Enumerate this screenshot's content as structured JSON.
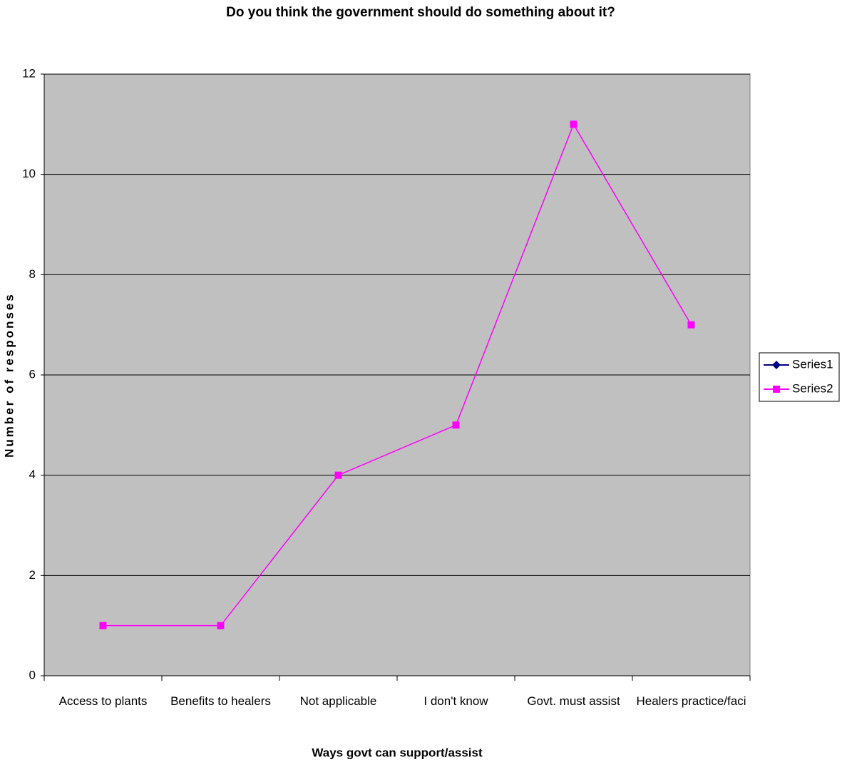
{
  "chart_data": {
    "type": "line",
    "title": "Do you think the government should do something about it?",
    "x_label": "Ways govt can support/assist",
    "y_label": "Number of responses",
    "categories": [
      "Access to plants",
      "Benefits to healers",
      "Not applicable",
      "I don't know",
      "Govt. must assist",
      "Healers practice/faci"
    ],
    "series": [
      {
        "name": "Series1",
        "color": "#000080",
        "marker": "diamond",
        "values": [
          null,
          null,
          null,
          null,
          null,
          null
        ]
      },
      {
        "name": "Series2",
        "color": "#ff00ff",
        "marker": "square",
        "values": [
          1,
          1,
          4,
          5,
          11,
          7
        ]
      }
    ],
    "ylim": [
      0,
      12
    ],
    "yticks": [
      0,
      2,
      4,
      6,
      8,
      10,
      12
    ],
    "grid": true,
    "legend": "right"
  }
}
